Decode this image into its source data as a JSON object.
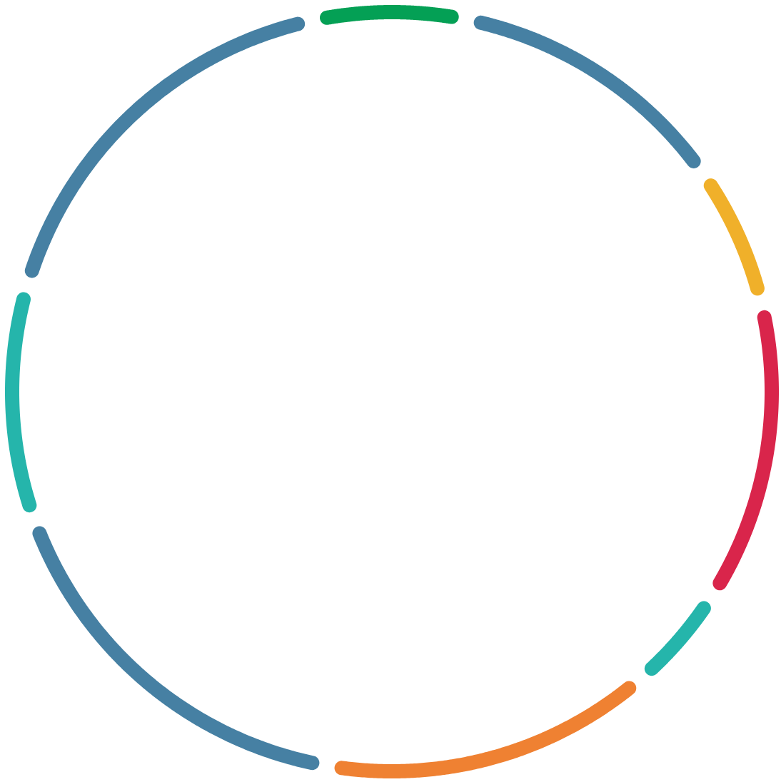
{
  "chart_data": {
    "type": "donut",
    "categories": [
      null,
      null,
      null,
      null,
      null,
      null,
      null,
      null,
      null
    ],
    "values": [
      6.5,
      12.1,
      6.0,
      12.8,
      4.6,
      14.1,
      16.8,
      10.0,
      17.1
    ],
    "colors": [
      "#04a055",
      "#4680a3",
      "#f0b02a",
      "#d9254b",
      "#25b5ab",
      "#ef8132",
      "#4680a3",
      "#25b5ab",
      "#4680a3"
    ]
  }
}
